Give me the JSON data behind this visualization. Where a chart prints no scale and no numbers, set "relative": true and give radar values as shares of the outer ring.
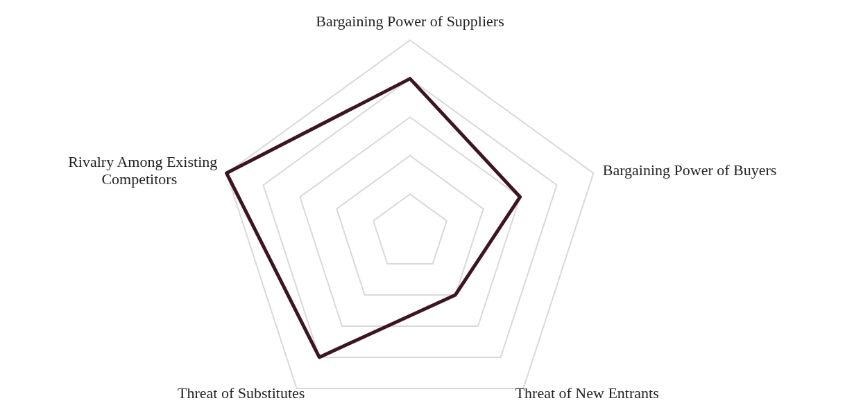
{
  "chart_data": {
    "type": "radar",
    "relative": true,
    "grid": true,
    "categories": [
      "Bargaining Power of Suppliers",
      "Bargaining Power of Buyers",
      "Threat of New Entrants",
      "Threat of Substitutes",
      "Rivalry Among Existing Competitors"
    ],
    "series": [
      {
        "color": "#3d1520",
        "values": [
          0.8,
          0.6,
          0.4,
          0.8,
          1.0
        ]
      }
    ]
  }
}
